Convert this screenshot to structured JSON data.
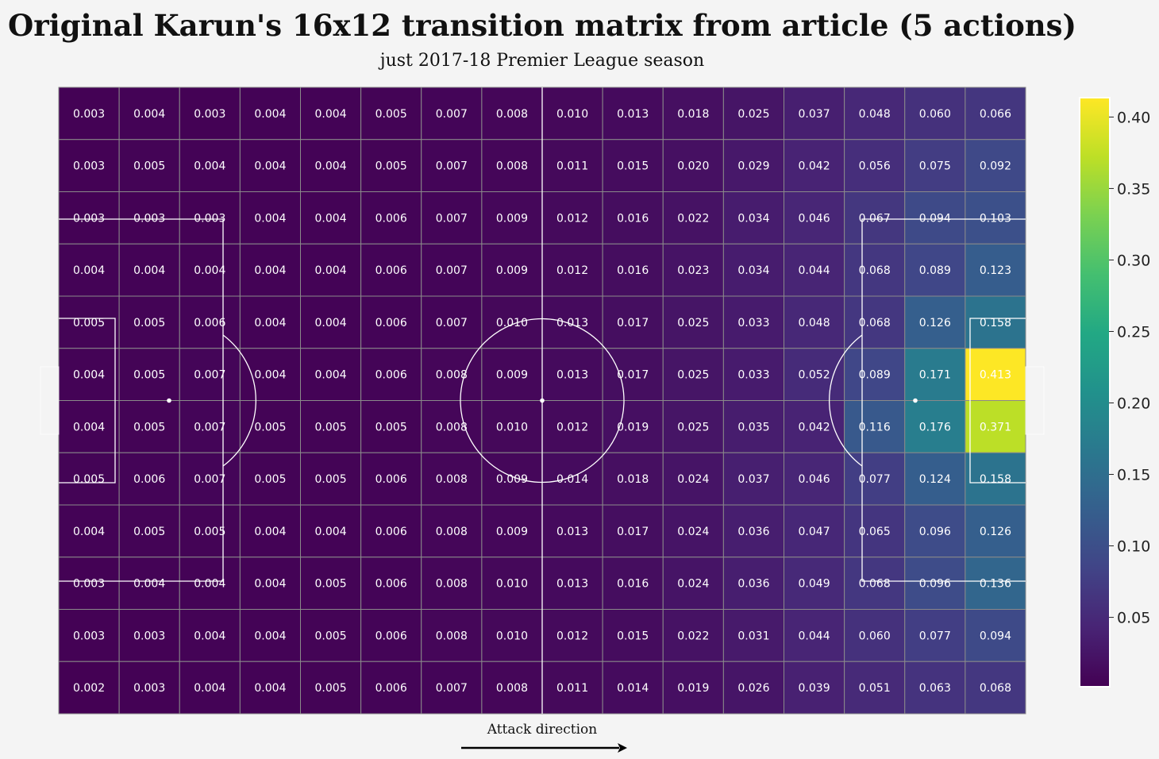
{
  "title": "Original Karun's 16x12 transition matrix from article (5 actions)",
  "subtitle": "just 2017-18 Premier League season",
  "annotation": "Attack direction",
  "colormap": "viridis",
  "chart_data": {
    "type": "heatmap",
    "title": "Original Karun's 16x12 transition matrix from article (5 actions)",
    "subtitle": "just 2017-18 Premier League season",
    "columns": 16,
    "rows": 12,
    "value_format": "0.000",
    "values": [
      [
        0.003,
        0.004,
        0.003,
        0.004,
        0.004,
        0.005,
        0.007,
        0.008,
        0.01,
        0.013,
        0.018,
        0.025,
        0.037,
        0.048,
        0.06,
        0.066
      ],
      [
        0.003,
        0.005,
        0.004,
        0.004,
        0.004,
        0.005,
        0.007,
        0.008,
        0.011,
        0.015,
        0.02,
        0.029,
        0.042,
        0.056,
        0.075,
        0.092
      ],
      [
        0.003,
        0.003,
        0.003,
        0.004,
        0.004,
        0.006,
        0.007,
        0.009,
        0.012,
        0.016,
        0.022,
        0.034,
        0.046,
        0.067,
        0.094,
        0.103
      ],
      [
        0.004,
        0.004,
        0.004,
        0.004,
        0.004,
        0.006,
        0.007,
        0.009,
        0.012,
        0.016,
        0.023,
        0.034,
        0.044,
        0.068,
        0.089,
        0.123
      ],
      [
        0.005,
        0.005,
        0.006,
        0.004,
        0.004,
        0.006,
        0.007,
        0.01,
        0.013,
        0.017,
        0.025,
        0.033,
        0.048,
        0.068,
        0.126,
        0.158
      ],
      [
        0.004,
        0.005,
        0.007,
        0.004,
        0.004,
        0.006,
        0.008,
        0.009,
        0.013,
        0.017,
        0.025,
        0.033,
        0.052,
        0.089,
        0.171,
        0.413
      ],
      [
        0.004,
        0.005,
        0.007,
        0.005,
        0.005,
        0.005,
        0.008,
        0.01,
        0.012,
        0.019,
        0.025,
        0.035,
        0.042,
        0.116,
        0.176,
        0.371
      ],
      [
        0.005,
        0.006,
        0.007,
        0.005,
        0.005,
        0.006,
        0.008,
        0.009,
        0.014,
        0.018,
        0.024,
        0.037,
        0.046,
        0.077,
        0.124,
        0.158
      ],
      [
        0.004,
        0.005,
        0.005,
        0.004,
        0.004,
        0.006,
        0.008,
        0.009,
        0.013,
        0.017,
        0.024,
        0.036,
        0.047,
        0.065,
        0.096,
        0.126
      ],
      [
        0.003,
        0.004,
        0.004,
        0.004,
        0.005,
        0.006,
        0.008,
        0.01,
        0.013,
        0.016,
        0.024,
        0.036,
        0.049,
        0.068,
        0.096,
        0.136
      ],
      [
        0.003,
        0.003,
        0.004,
        0.004,
        0.005,
        0.006,
        0.008,
        0.01,
        0.012,
        0.015,
        0.022,
        0.031,
        0.044,
        0.06,
        0.077,
        0.094
      ],
      [
        0.002,
        0.003,
        0.004,
        0.004,
        0.005,
        0.006,
        0.007,
        0.008,
        0.011,
        0.014,
        0.019,
        0.026,
        0.039,
        0.051,
        0.063,
        0.068
      ]
    ],
    "colorbar": {
      "range": [
        0.002,
        0.413
      ],
      "ticks": [
        0.05,
        0.1,
        0.15,
        0.2,
        0.25,
        0.3,
        0.35,
        0.4
      ],
      "tick_labels": [
        "0.05",
        "0.10",
        "0.15",
        "0.20",
        "0.25",
        "0.30",
        "0.35",
        "0.40"
      ]
    }
  }
}
